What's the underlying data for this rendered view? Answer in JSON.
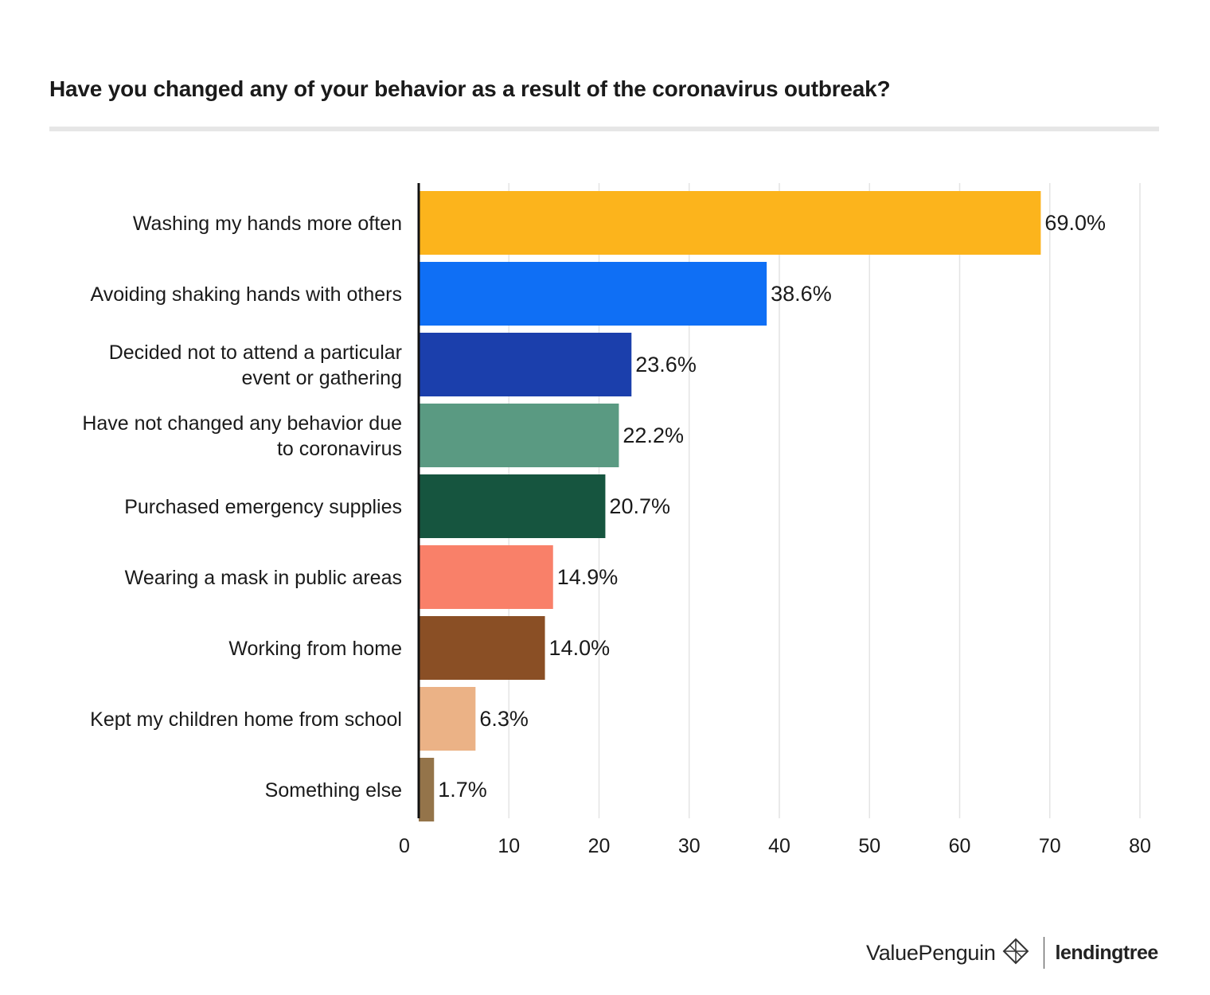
{
  "chart_data": {
    "type": "bar",
    "orientation": "horizontal",
    "title": "Have you changed any of your behavior as a result of the coronavirus outbreak?",
    "categories": [
      [
        "Washing my hands more often"
      ],
      [
        "Avoiding shaking hands with others"
      ],
      [
        "Decided not to attend a particular",
        "event or gathering"
      ],
      [
        "Have not changed any behavior due",
        "to coronavirus"
      ],
      [
        "Purchased emergency supplies"
      ],
      [
        "Wearing a mask in public areas"
      ],
      [
        "Working from home"
      ],
      [
        "Kept my children home from school"
      ],
      [
        "Something else"
      ]
    ],
    "values": [
      69.0,
      38.6,
      23.6,
      22.2,
      20.7,
      14.9,
      14.0,
      6.3,
      1.7
    ],
    "value_labels": [
      "69.0%",
      "38.6%",
      "23.6%",
      "22.2%",
      "20.7%",
      "14.9%",
      "14.0%",
      "6.3%",
      "1.7%"
    ],
    "colors": [
      "#fcb41c",
      "#0f6ff5",
      "#1b3fac",
      "#5a9a82",
      "#16553f",
      "#f98069",
      "#8a4f25",
      "#ebb286",
      "#94744a"
    ],
    "xticks": [
      "0",
      "10",
      "20",
      "30",
      "40",
      "50",
      "60",
      "70",
      "80"
    ],
    "xlim": [
      0,
      80
    ],
    "grid": true
  },
  "footer": {
    "brand_left": "ValuePenguin",
    "brand_right": "lendingtree"
  }
}
